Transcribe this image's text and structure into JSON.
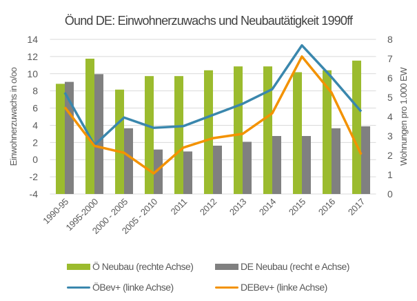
{
  "chart_data": {
    "type": "bar+line",
    "title": "Öund DE: Einwohnerzuwachs und Neubautätigkeit 1990ff",
    "ylabel_left": "Einwohnerzuwachs in o/oo",
    "ylabel_right": "Wohnungen pro 1.000 EW",
    "ylim_left": [
      -4,
      14
    ],
    "yticks_left": [
      -4,
      -2,
      0,
      2,
      4,
      6,
      8,
      10,
      12,
      14
    ],
    "ylim_right": [
      0,
      8
    ],
    "yticks_right": [
      0,
      1,
      2,
      3,
      4,
      5,
      6,
      7,
      8
    ],
    "grid": true,
    "legend_position": "bottom",
    "categories": [
      "1990-95",
      "1995-2000",
      "2000 - 2005",
      "2005 - 2010",
      "2011",
      "2012",
      "2013",
      "2014",
      "2015",
      "2016",
      "2017"
    ],
    "series": [
      {
        "name": "Ö Neubau (rechte Achse)",
        "kind": "bar",
        "axis": "right",
        "color": "#9BBB2E",
        "values": [
          5.7,
          7.0,
          5.4,
          6.1,
          6.1,
          6.4,
          6.6,
          6.6,
          6.3,
          6.4,
          6.9
        ]
      },
      {
        "name": "DE Neubau (recht e Achse)",
        "kind": "bar",
        "axis": "right",
        "color": "#808080",
        "values": [
          5.8,
          6.2,
          3.4,
          2.3,
          2.2,
          2.5,
          2.7,
          3.0,
          3.0,
          3.4,
          3.5
        ]
      },
      {
        "name": "ÖBev+ (linke Achse)",
        "kind": "line",
        "axis": "left",
        "color": "#3A87AD",
        "values": [
          7.8,
          1.7,
          4.9,
          3.7,
          3.9,
          5.2,
          6.5,
          8.2,
          13.3,
          9.6,
          5.6
        ]
      },
      {
        "name": "DEBev+ (linke Achse)",
        "kind": "line",
        "axis": "left",
        "color": "#F39200",
        "values": [
          6.1,
          1.6,
          0.8,
          -1.6,
          1.4,
          2.5,
          3.0,
          5.4,
          12.0,
          7.8,
          0.6
        ]
      }
    ]
  }
}
